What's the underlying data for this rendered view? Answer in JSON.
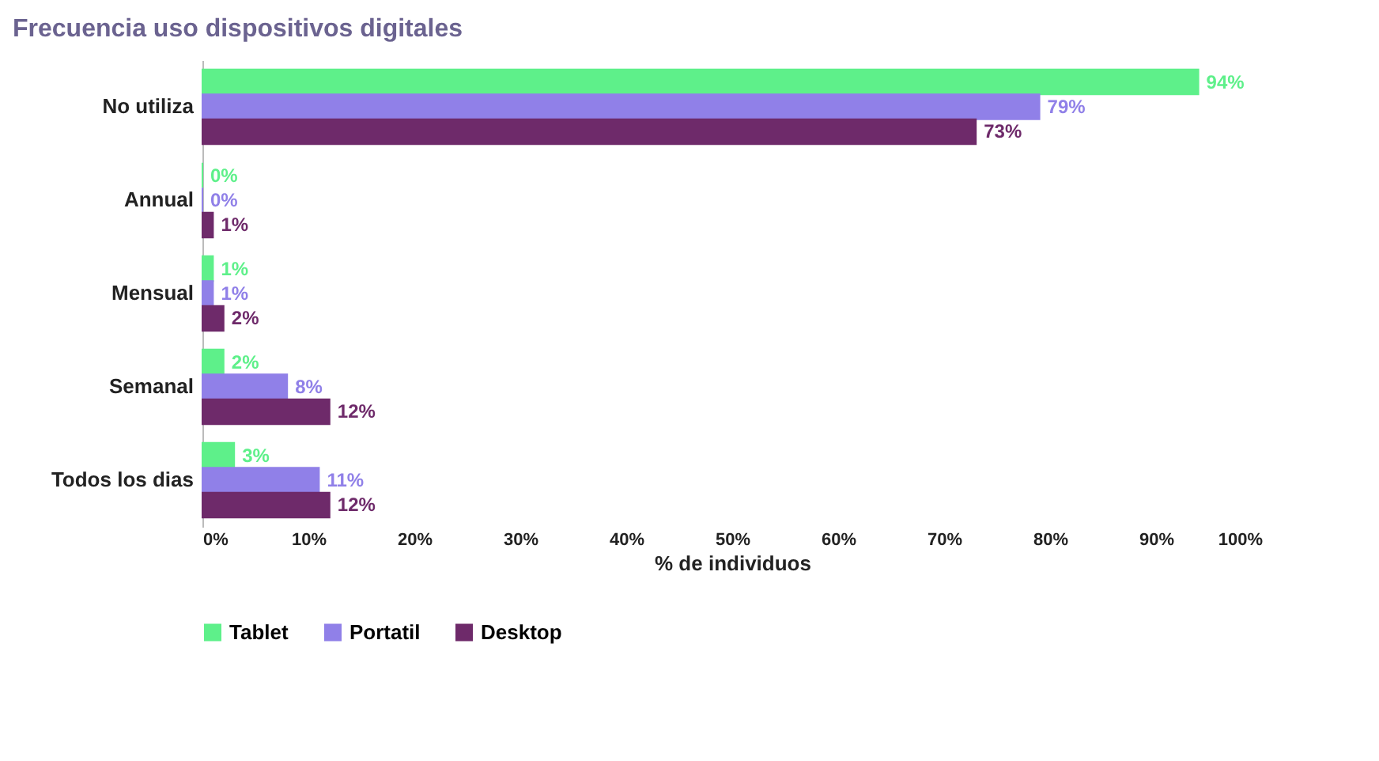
{
  "chart_data": {
    "type": "bar",
    "orientation": "horizontal",
    "title": "Frecuencia uso dispositivos digitales",
    "xlabel": "% de individuos",
    "categories": [
      "No utiliza",
      "Annual",
      "Mensual",
      "Semanal",
      "Todos los dias"
    ],
    "series": [
      {
        "name": "Tablet",
        "color": "#5ef08a",
        "values": [
          94,
          0,
          1,
          2,
          3
        ],
        "value_labels": [
          "94%",
          "0%",
          "1%",
          "2%",
          "3%"
        ]
      },
      {
        "name": "Portatil",
        "color": "#9080e8",
        "values": [
          79,
          0,
          1,
          8,
          11
        ],
        "value_labels": [
          "79%",
          "0%",
          "1%",
          "8%",
          "11%"
        ]
      },
      {
        "name": "Desktop",
        "color": "#6e2a6a",
        "values": [
          73,
          1,
          2,
          12,
          12
        ],
        "value_labels": [
          "73%",
          "1%",
          "2%",
          "12%",
          "12%"
        ]
      }
    ],
    "xlim": [
      0,
      100
    ],
    "xticks": [
      {
        "value": 0,
        "label": "0%"
      },
      {
        "value": 10,
        "label": "10%"
      },
      {
        "value": 20,
        "label": "20%"
      },
      {
        "value": 30,
        "label": "30%"
      },
      {
        "value": 40,
        "label": "40%"
      },
      {
        "value": 50,
        "label": "50%"
      },
      {
        "value": 60,
        "label": "60%"
      },
      {
        "value": 70,
        "label": "70%"
      },
      {
        "value": 80,
        "label": "80%"
      },
      {
        "value": 90,
        "label": "90%"
      },
      {
        "value": 100,
        "label": "100%"
      }
    ],
    "legend": "bottom"
  }
}
